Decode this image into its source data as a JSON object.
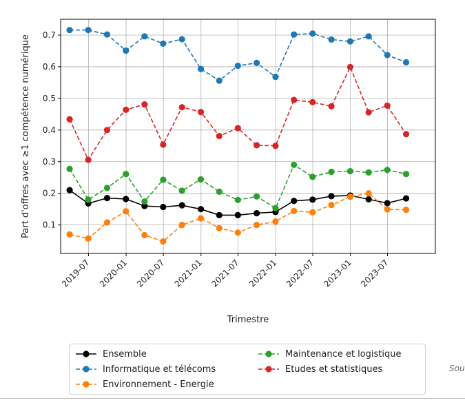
{
  "chart_data": {
    "type": "line",
    "title": "",
    "xlabel": "Trimestre",
    "ylabel": "Part d'offres avec ≥1 compétence numérique",
    "ylim": [
      0.01,
      0.75
    ],
    "yticks": [
      0.1,
      0.2,
      0.3,
      0.4,
      0.5,
      0.6,
      0.7
    ],
    "ytick_labels": [
      "0.1",
      "0.2",
      "0.3",
      "0.4",
      "0.5",
      "0.6",
      "0.7"
    ],
    "xlim": [
      "2019-02-15",
      "2024-02-20"
    ],
    "xticks": [
      "2019-07-01",
      "2020-01-01",
      "2020-07-01",
      "2021-01-01",
      "2021-07-01",
      "2022-01-01",
      "2022-07-01",
      "2023-01-01",
      "2023-07-01"
    ],
    "xtick_labels": [
      "2019-07",
      "2020-01",
      "2020-07",
      "2021-01",
      "2021-07",
      "2022-01",
      "2022-07",
      "2023-01",
      "2023-07"
    ],
    "grid": true,
    "legend_position": "bottom-center",
    "x": [
      "2019-03-31",
      "2019-06-30",
      "2019-09-30",
      "2019-12-31",
      "2020-03-31",
      "2020-06-30",
      "2020-09-30",
      "2020-12-31",
      "2021-03-31",
      "2021-06-30",
      "2021-09-30",
      "2021-12-31",
      "2022-03-31",
      "2022-06-30",
      "2022-09-30",
      "2022-12-31",
      "2023-03-31",
      "2023-06-30",
      "2023-09-30"
    ],
    "series": [
      {
        "name": "Ensemble",
        "color": "#000000",
        "dashed": false,
        "values": [
          0.21,
          0.168,
          0.185,
          0.182,
          0.16,
          0.157,
          0.162,
          0.15,
          0.131,
          0.131,
          0.137,
          0.141,
          0.176,
          0.18,
          0.191,
          0.193,
          0.181,
          0.169,
          0.184
        ]
      },
      {
        "name": "Informatique et télécoms",
        "color": "#1f77b4",
        "dashed": true,
        "values": [
          0.716,
          0.716,
          0.702,
          0.651,
          0.696,
          0.673,
          0.687,
          0.593,
          0.556,
          0.603,
          0.612,
          0.568,
          0.702,
          0.705,
          0.686,
          0.68,
          0.696,
          0.637,
          0.614
        ]
      },
      {
        "name": "Environnement - Energie",
        "color": "#ff7f0e",
        "dashed": true,
        "values": [
          0.07,
          0.057,
          0.108,
          0.143,
          0.068,
          0.048,
          0.1,
          0.121,
          0.09,
          0.076,
          0.1,
          0.111,
          0.144,
          0.14,
          0.163,
          0.189,
          0.2,
          0.149,
          0.148
        ]
      },
      {
        "name": "Maintenance et logistique",
        "color": "#2ca02c",
        "dashed": true,
        "values": [
          0.277,
          0.18,
          0.217,
          0.261,
          0.174,
          0.243,
          0.208,
          0.244,
          0.205,
          0.179,
          0.19,
          0.153,
          0.29,
          0.252,
          0.268,
          0.27,
          0.266,
          0.274,
          0.261
        ]
      },
      {
        "name": "Etudes et statistiques",
        "color": "#d62728",
        "dashed": true,
        "values": [
          0.434,
          0.306,
          0.4,
          0.464,
          0.481,
          0.354,
          0.472,
          0.457,
          0.381,
          0.406,
          0.352,
          0.35,
          0.495,
          0.488,
          0.475,
          0.599,
          0.456,
          0.477,
          0.387
        ]
      }
    ]
  },
  "source_note": "Sou"
}
